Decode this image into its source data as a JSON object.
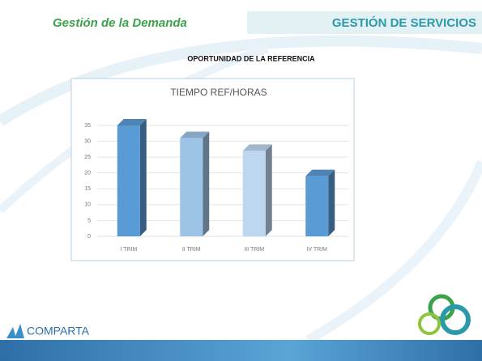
{
  "header": {
    "left": "Gestión de la Demanda",
    "right": "GESTIÓN DE SERVICIOS"
  },
  "heading": "OPORTUNIDAD DE LA REFERENCIA",
  "footer": {
    "logo": "COMPARTA"
  },
  "chart_data": {
    "type": "bar3d",
    "title": "TIEMPO REF/HORAS",
    "categories": [
      "I TRIM",
      "II TRIM",
      "III TRIM",
      "IV TRIM"
    ],
    "values": [
      35,
      31,
      27,
      19
    ],
    "colors": [
      "#5b9bd5",
      "#9dc3e6",
      "#bdd7ee",
      "#5b9bd5"
    ],
    "ylim": [
      0,
      35
    ],
    "yticks": [
      0,
      5,
      10,
      15,
      20,
      25,
      30,
      35
    ],
    "grid": true
  }
}
